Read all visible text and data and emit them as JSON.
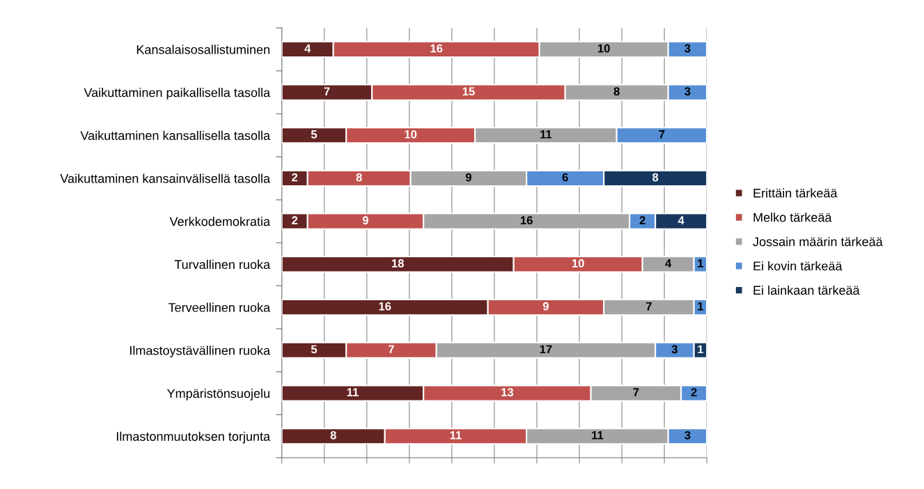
{
  "chart_data": {
    "type": "bar",
    "orientation": "horizontal",
    "stacked": true,
    "data_labels": true,
    "grid": "x",
    "legend": "right",
    "tick_labels": "y",
    "categories": [
      "Kansalaisosallistuminen",
      "Vaikuttaminen paikallisella tasolla",
      "Vaikuttaminen kansallisella tasolla",
      "Vaikuttaminen kansainvälisellä tasolla",
      "Verkkodemokratia",
      "Turvallinen ruoka",
      "Terveellinen ruoka",
      "Ilmastoystävällinen ruoka",
      "Ympäristönsuojelu",
      "Ilmastonmuutoksen torjunta"
    ],
    "xlim": [
      0,
      33
    ],
    "xticks": [
      0,
      {
        "value": 3.3,
        "label": null
      },
      {
        "value": 6.6,
        "label": null
      },
      {
        "value": 9.9,
        "label": null
      },
      {
        "value": 13.2,
        "label": null
      },
      {
        "value": 16.5,
        "label": null
      },
      {
        "value": 19.8,
        "label": null
      },
      {
        "value": 23.1,
        "label": null
      },
      {
        "value": 26.4,
        "label": null
      },
      {
        "value": 29.7,
        "label": null
      },
      33
    ],
    "series": [
      {
        "name": "Erittäin tärkeää",
        "color": "#632523",
        "values": [
          4,
          7,
          5,
          2,
          2,
          18,
          16,
          5,
          11,
          8
        ]
      },
      {
        "name": "Melko tärkeää",
        "color": "#c0504d",
        "values": [
          16,
          15,
          10,
          8,
          9,
          10,
          9,
          7,
          13,
          11
        ]
      },
      {
        "name": "Jossain määrin tärkeää",
        "color": "#a5a5a5",
        "values": [
          10,
          8,
          11,
          9,
          16,
          4,
          7,
          17,
          7,
          11
        ]
      },
      {
        "name": "Ei kovin tärkeää",
        "color": "#558ed5",
        "values": [
          3,
          3,
          7,
          6,
          2,
          1,
          1,
          3,
          2,
          3
        ]
      },
      {
        "name": "Ei lainkaan tärkeää",
        "color": "#17375e",
        "values": [
          null,
          null,
          null,
          8,
          4,
          null,
          null,
          1,
          null,
          null
        ]
      }
    ]
  }
}
